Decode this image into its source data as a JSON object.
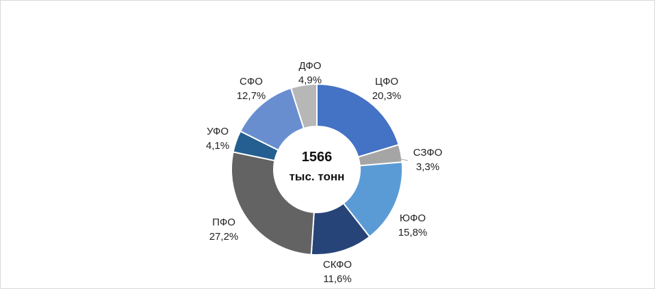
{
  "chart_data": {
    "type": "pie",
    "donut": true,
    "center_value": "1566",
    "center_unit": "тыс. тонн",
    "slices": [
      {
        "name": "ЦФО",
        "value": 20.3,
        "label": "20,3%",
        "color": "#4472c4"
      },
      {
        "name": "СЗФО",
        "value": 3.3,
        "label": "3,3%",
        "color": "#a5a5a5"
      },
      {
        "name": "ЮФО",
        "value": 15.8,
        "label": "15,8%",
        "color": "#5b9bd5"
      },
      {
        "name": "СКФО",
        "value": 11.6,
        "label": "11,6%",
        "color": "#264478"
      },
      {
        "name": "ПФО",
        "value": 27.2,
        "label": "27,2%",
        "color": "#636363"
      },
      {
        "name": "УФО",
        "value": 4.1,
        "label": "4,1%",
        "color": "#255e91"
      },
      {
        "name": "СФО",
        "value": 12.7,
        "label": "12,7%",
        "color": "#698ed0"
      },
      {
        "name": "ДФО",
        "value": 4.9,
        "label": "4,9%",
        "color": "#b7b7b7"
      }
    ]
  }
}
